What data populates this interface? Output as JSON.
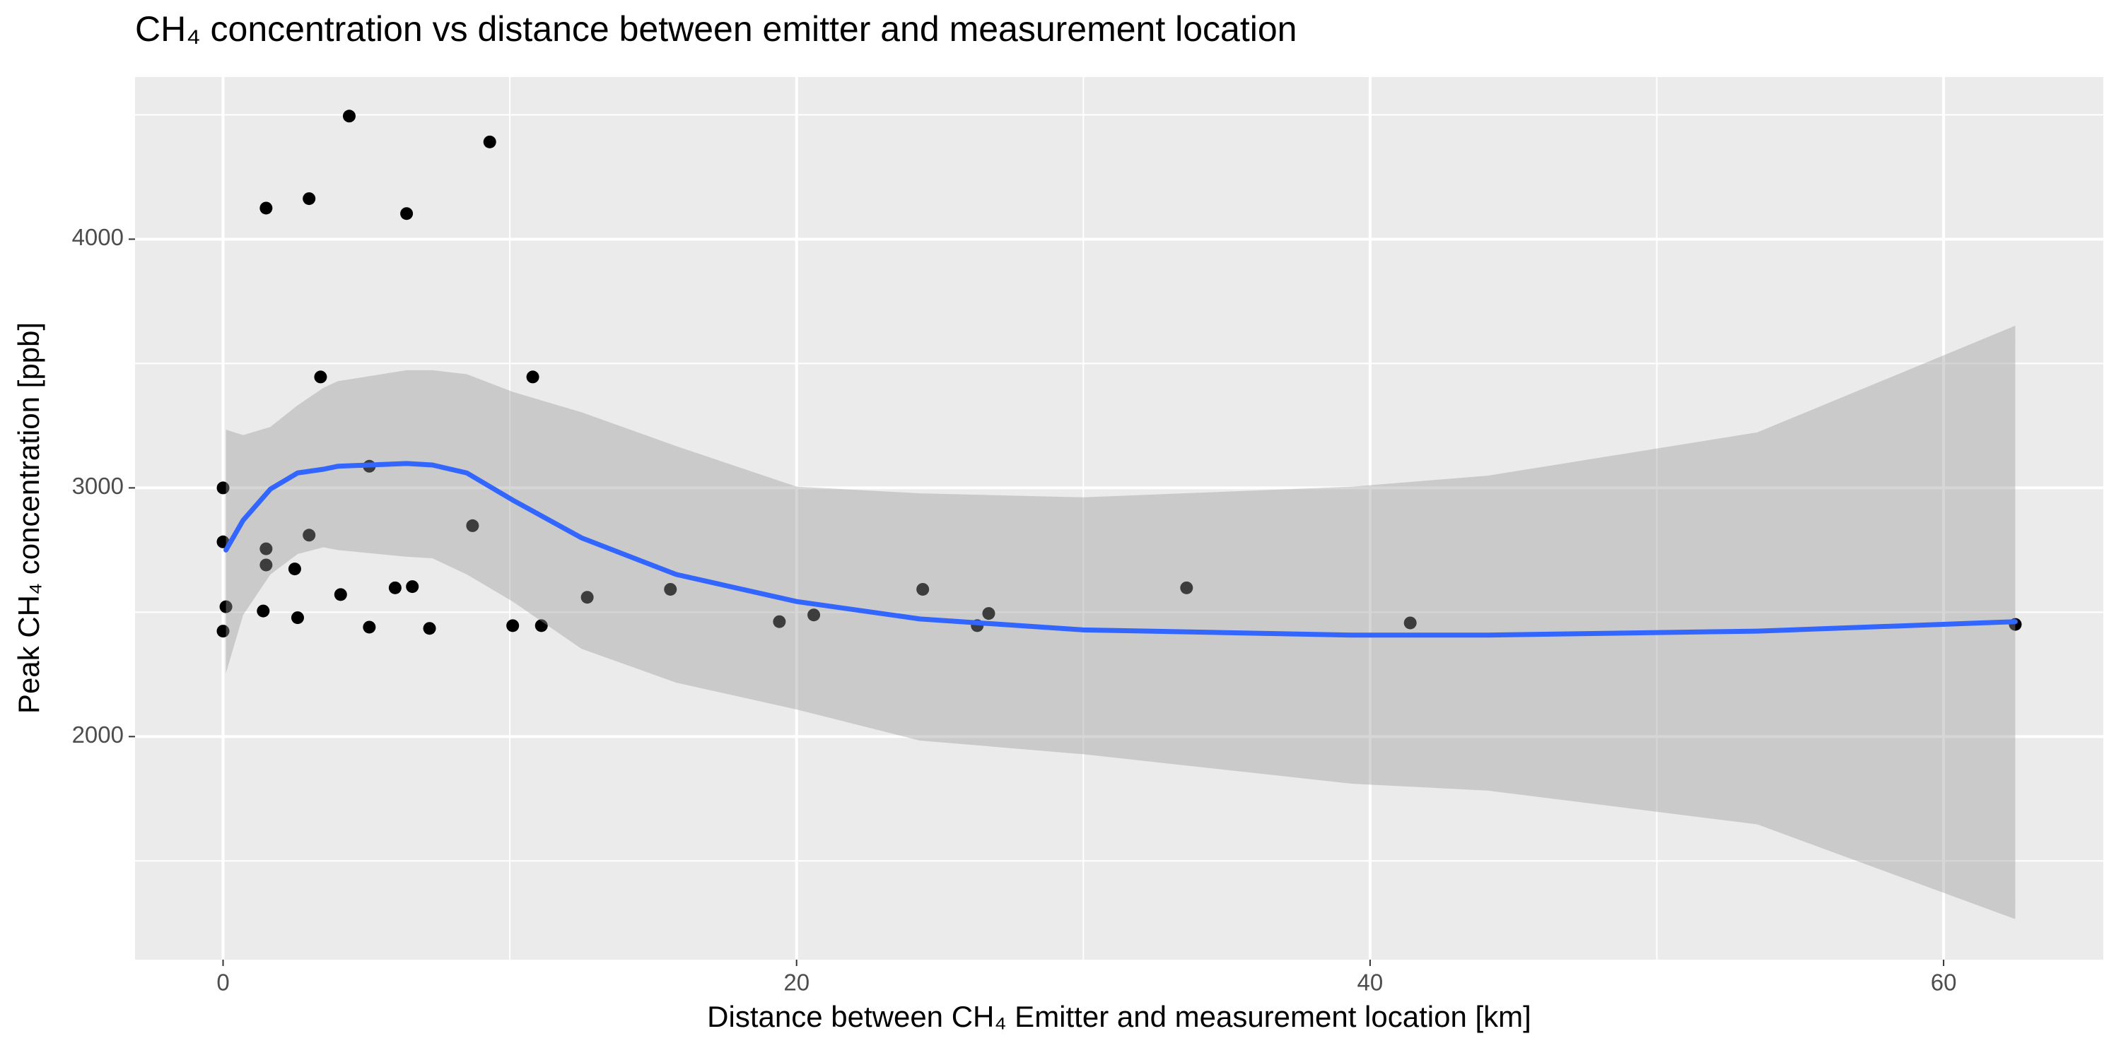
{
  "chart_data": {
    "type": "scatter",
    "title": "CH₄ concentration vs distance between emitter and measurement location",
    "x_label": "Distance between CH₄ Emitter and measurement location [km]",
    "y_label": "Peak CH₄ concentration [ppb]",
    "xlim": [
      -3.07,
      65.57
    ],
    "ylim": [
      1103,
      4652
    ],
    "xticks": [
      0,
      20,
      40,
      60
    ],
    "yticks": [
      2000,
      3000,
      4000
    ],
    "grid": true,
    "point_color": "#000000",
    "points": {
      "x": [
        0,
        0,
        0.1,
        0,
        1.5,
        1.5,
        1.5,
        1.4,
        3.0,
        3.4,
        3.0,
        2.5,
        2.6,
        4.4,
        4.1,
        5.1,
        5.1,
        6.4,
        6.0,
        6.6,
        7.2,
        8.7,
        9.3,
        10.1,
        10.8,
        11.1,
        12.7,
        15.6,
        19.4,
        20.6,
        24.4,
        26.3,
        26.7,
        33.6,
        41.4,
        62.5
      ],
      "y": [
        3000,
        2783,
        2522,
        2424,
        4125,
        2755,
        2690,
        2505,
        4163,
        3446,
        2810,
        2674,
        2478,
        4495,
        2571,
        3087,
        2440,
        4103,
        2598,
        2603,
        2435,
        2848,
        4391,
        2446,
        3446,
        2446,
        2560,
        2592,
        2462,
        2489,
        2592,
        2446,
        2495,
        2598,
        2457,
        2451
      ]
    },
    "smooth": {
      "color": "#3366ff",
      "ribbon_color": "#999999",
      "x": [
        0.1,
        0.7,
        1.65,
        2.6,
        3.5,
        4.0,
        6.4,
        7.3,
        8.5,
        10.1,
        12.5,
        15.8,
        20,
        24.3,
        30,
        39.4,
        44.1,
        53.5,
        62.5
      ],
      "y": [
        2750,
        2870,
        2995,
        3060,
        3075,
        3087,
        3098,
        3092,
        3060,
        2951,
        2799,
        2652,
        2543,
        2473,
        2429,
        2408,
        2408,
        2424,
        2462
      ],
      "upper": [
        3234,
        3212,
        3245,
        3332,
        3402,
        3429,
        3473,
        3473,
        3457,
        3386,
        3304,
        3168,
        3005,
        2978,
        2962,
        3005,
        3049,
        3223,
        3652
      ],
      "lower": [
        2255,
        2489,
        2652,
        2734,
        2761,
        2750,
        2723,
        2717,
        2652,
        2543,
        2353,
        2217,
        2109,
        1984,
        1929,
        1810,
        1783,
        1647,
        1266
      ]
    }
  }
}
